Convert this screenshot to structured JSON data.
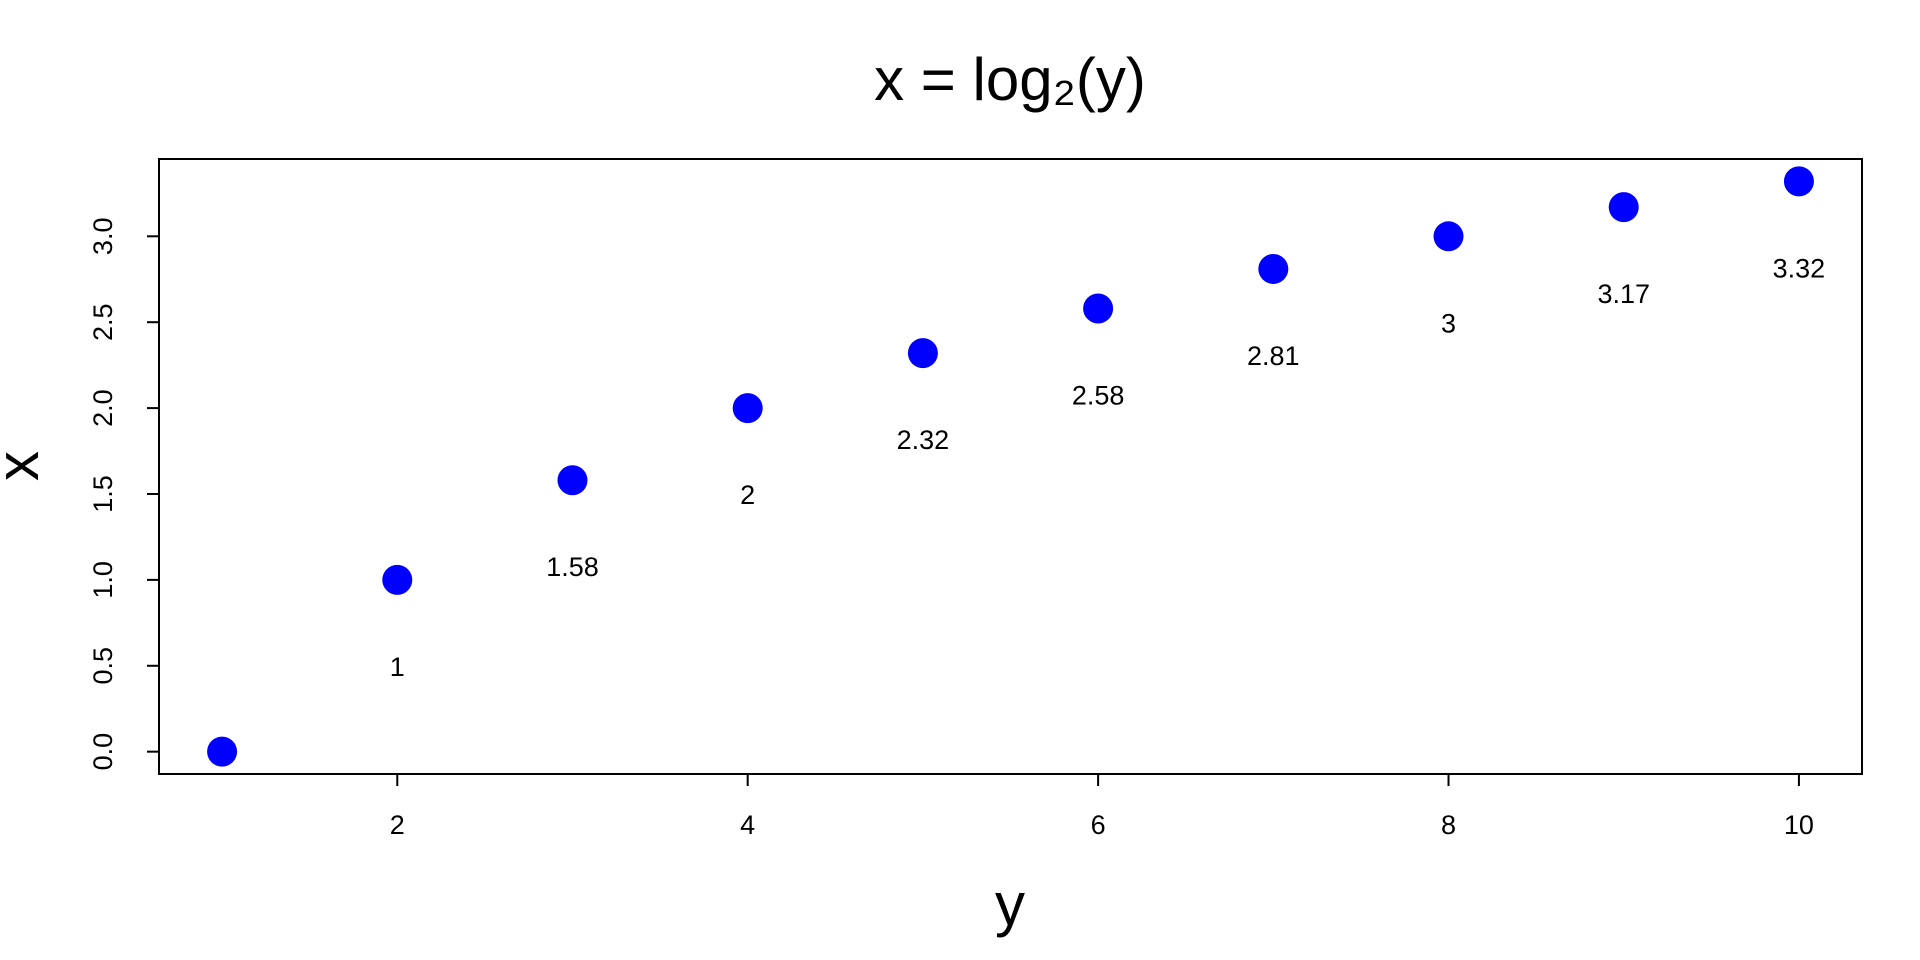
{
  "chart_data": {
    "type": "scatter",
    "title": "x = log₂(y)",
    "x_label": "y",
    "y_label": "x",
    "series": [
      {
        "color": "#0000ff",
        "x": [
          1,
          2,
          3,
          4,
          5,
          6,
          7,
          8,
          9,
          10
        ],
        "values": [
          0,
          1,
          1.58,
          2,
          2.32,
          2.58,
          2.81,
          3,
          3.17,
          3.32
        ],
        "value_labels": [
          null,
          "1",
          "1.58",
          "2",
          "2.32",
          "2.58",
          "2.81",
          "3",
          "3.17",
          "3.32"
        ]
      }
    ],
    "xlim": [
      0.64,
      10.36
    ],
    "ylim": [
      -0.13,
      3.45
    ],
    "xticks": [
      2,
      4,
      6,
      8,
      10
    ],
    "yticks": [
      {
        "value": 0,
        "label": "0.0"
      },
      {
        "value": 0.5,
        "label": "0.5"
      },
      {
        "value": 1,
        "label": "1.0"
      },
      {
        "value": 1.5,
        "label": "1.5"
      },
      {
        "value": 2,
        "label": "2.0"
      },
      {
        "value": 2.5,
        "label": "2.5"
      },
      {
        "value": 3,
        "label": "3.0"
      }
    ]
  }
}
